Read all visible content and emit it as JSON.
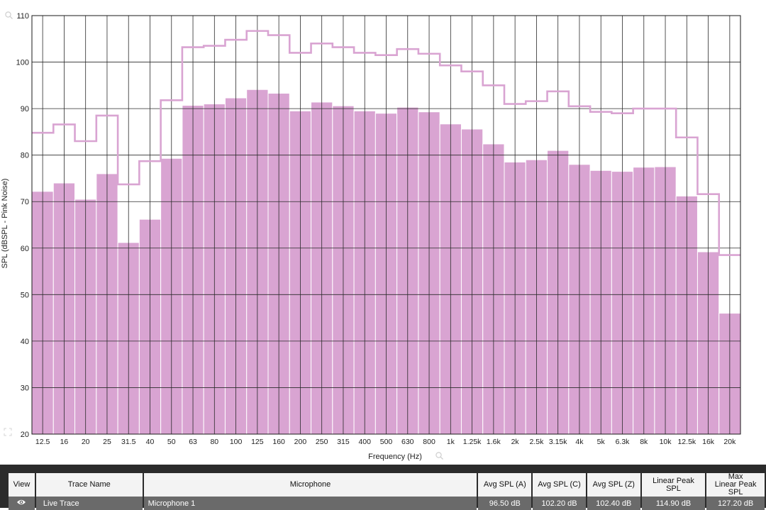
{
  "chart_data": {
    "type": "bar",
    "xlabel": "Frequency (Hz)",
    "ylabel": "SPL (dBSPL - Pink Noise)",
    "ylim": [
      20,
      110
    ],
    "yticks": [
      20,
      30,
      40,
      50,
      60,
      70,
      80,
      90,
      100,
      110
    ],
    "categories": [
      "12.5",
      "16",
      "20",
      "25",
      "31.5",
      "40",
      "50",
      "63",
      "80",
      "100",
      "125",
      "160",
      "200",
      "250",
      "315",
      "400",
      "500",
      "630",
      "800",
      "1k",
      "1.25k",
      "1.6k",
      "2k",
      "2.5k",
      "3.15k",
      "4k",
      "5k",
      "6.3k",
      "8k",
      "10k",
      "12.5k",
      "16k",
      "20k"
    ],
    "grid": true,
    "series": [
      {
        "kind": "bar",
        "color": "#d9a4d2",
        "values": [
          72.2,
          74.0,
          70.5,
          76.0,
          61.2,
          66.2,
          79.3,
          90.7,
          91.0,
          92.3,
          94.1,
          93.3,
          89.5,
          91.4,
          90.6,
          89.5,
          89.0,
          90.3,
          89.3,
          86.7,
          85.6,
          82.4,
          78.5,
          79.0,
          81.0,
          78.0,
          76.7,
          76.5,
          77.4,
          77.5,
          71.2,
          59.2,
          46.0
        ]
      },
      {
        "kind": "step",
        "color": "#d9a4d2",
        "values": [
          84.8,
          86.6,
          83.0,
          88.5,
          73.7,
          78.7,
          91.8,
          103.2,
          103.5,
          104.8,
          106.7,
          105.8,
          102.0,
          104.0,
          103.2,
          102.0,
          101.5,
          102.8,
          101.8,
          99.3,
          98.0,
          95.0,
          91.0,
          91.6,
          93.7,
          90.5,
          89.3,
          89.0,
          90.0,
          90.0,
          83.8,
          71.6,
          58.5
        ]
      }
    ]
  },
  "table": {
    "headers": {
      "view": "View",
      "trace_name": "Trace Name",
      "microphone": "Microphone",
      "avg_a": "Avg SPL (A)",
      "avg_c": "Avg SPL (C)",
      "avg_z": "Avg SPL (Z)",
      "linear_peak": "Linear Peak SPL",
      "max_line1": "Max",
      "max_line2": "Linear Peak SPL"
    },
    "rows": [
      {
        "view_icon": "eye-icon",
        "trace_name": "Live Trace",
        "microphone": "Microphone 1",
        "avg_a": "96.50 dB",
        "avg_c": "102.20 dB",
        "avg_z": "102.40 dB",
        "linear_peak": "114.90 dB",
        "max_linear_peak": "127.20 dB"
      }
    ]
  },
  "icons": [
    "zoom-icon",
    "eye-icon"
  ]
}
